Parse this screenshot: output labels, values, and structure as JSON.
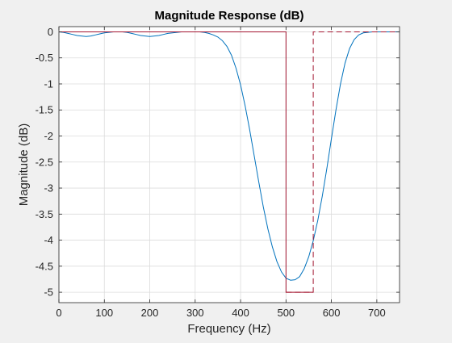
{
  "chart_data": {
    "type": "line",
    "title": "Magnitude Response (dB)",
    "xlabel": "Frequency (Hz)",
    "ylabel": "Magnitude (dB)",
    "xlim": [
      0,
      750
    ],
    "ylim": [
      -5.2,
      0.1
    ],
    "xticks": [
      0,
      100,
      200,
      300,
      400,
      500,
      600,
      700
    ],
    "xtick_labels": [
      "0",
      "100",
      "200",
      "300",
      "400",
      "500",
      "600",
      "700"
    ],
    "yticks": [
      0,
      -0.5,
      -1,
      -1.5,
      -2,
      -2.5,
      -3,
      -3.5,
      -4,
      -4.5,
      -5
    ],
    "ytick_labels": [
      "0",
      "-0.5",
      "-1",
      "-1.5",
      "-2",
      "-2.5",
      "-3",
      "-3.5",
      "-4",
      "-4.5",
      "-5"
    ],
    "grid": true,
    "series": [
      {
        "color": "#0072BD",
        "style": "solid",
        "x": [
          0,
          10,
          20,
          30,
          40,
          50,
          60,
          70,
          80,
          90,
          100,
          110,
          120,
          130,
          140,
          150,
          160,
          170,
          180,
          190,
          200,
          210,
          220,
          230,
          240,
          250,
          260,
          270,
          280,
          290,
          300,
          310,
          320,
          330,
          340,
          350,
          360,
          370,
          380,
          390,
          400,
          410,
          420,
          430,
          440,
          450,
          460,
          470,
          480,
          490,
          500,
          510,
          520,
          530,
          540,
          550,
          560,
          570,
          580,
          590,
          600,
          610,
          620,
          630,
          640,
          650,
          660,
          670,
          680,
          690,
          700,
          710,
          720,
          730,
          740,
          750
        ],
        "y": [
          0,
          -0.01,
          -0.03,
          -0.05,
          -0.07,
          -0.08,
          -0.09,
          -0.08,
          -0.06,
          -0.04,
          -0.02,
          -0.01,
          0,
          0,
          0,
          -0.01,
          -0.03,
          -0.05,
          -0.07,
          -0.08,
          -0.09,
          -0.08,
          -0.07,
          -0.05,
          -0.03,
          -0.02,
          -0.01,
          0,
          0,
          0,
          0,
          0,
          -0.01,
          -0.03,
          -0.06,
          -0.1,
          -0.17,
          -0.28,
          -0.45,
          -0.7,
          -1.02,
          -1.42,
          -1.88,
          -2.38,
          -2.88,
          -3.36,
          -3.78,
          -4.13,
          -4.41,
          -4.61,
          -4.73,
          -4.77,
          -4.76,
          -4.7,
          -4.55,
          -4.32,
          -4.01,
          -3.62,
          -3.15,
          -2.62,
          -2.05,
          -1.5,
          -1.0,
          -0.6,
          -0.32,
          -0.15,
          -0.06,
          -0.02,
          -0.01,
          0,
          0,
          0,
          0,
          0,
          0,
          0
        ]
      },
      {
        "color": "#A2142F",
        "style": "solid",
        "x": [
          0,
          500,
          500,
          560
        ],
        "y": [
          0,
          0,
          -5,
          -5
        ]
      },
      {
        "color": "#A2142F",
        "style": "dashed",
        "x": [
          500,
          560,
          560,
          750
        ],
        "y": [
          -5,
          -5,
          0,
          0
        ]
      }
    ]
  }
}
